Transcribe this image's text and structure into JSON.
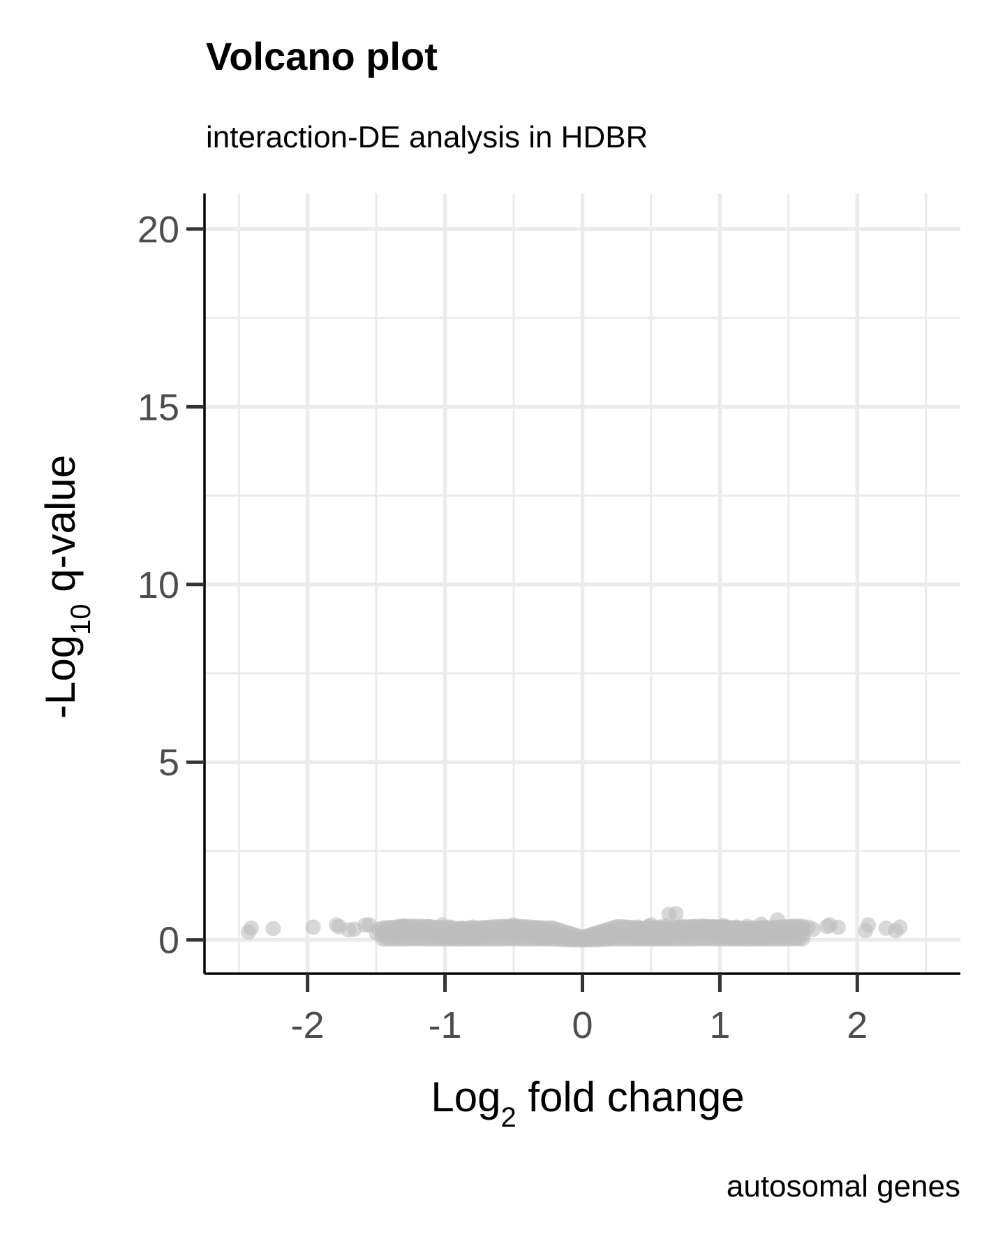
{
  "chart_data": {
    "type": "scatter",
    "title": "Volcano plot",
    "subtitle": "interaction-DE analysis in HDBR",
    "caption": "autosomal genes",
    "xlabel": {
      "main": "Log",
      "sub": "2",
      "rest": " fold change"
    },
    "ylabel": {
      "main": "-Log",
      "sub": "10",
      "rest": " q-value"
    },
    "xlim": [
      -2.75,
      2.75
    ],
    "ylim": [
      -0.95,
      21
    ],
    "x_ticks": [
      -2,
      -1,
      0,
      1,
      2
    ],
    "x_tick_labels": [
      "-2",
      "-1",
      "0",
      "1",
      "2"
    ],
    "y_ticks": [
      0,
      5,
      10,
      15,
      20
    ],
    "y_tick_labels": [
      "0",
      "5",
      "10",
      "15",
      "20"
    ],
    "grid": true,
    "point_color": "#bebebe",
    "point_opacity": 0.6,
    "points": {
      "x": [
        -2.43,
        -2.41,
        -2.25,
        -1.96,
        -1.79,
        -1.77,
        -1.7,
        -1.66,
        -1.58,
        -1.55,
        -1.48,
        -1.42,
        -1.37,
        -1.33,
        -1.3,
        -1.26,
        -1.21,
        -1.16,
        -1.12,
        -1.08,
        -1.04,
        -1.0,
        -0.96,
        -0.92,
        -0.88,
        -0.84,
        -0.8,
        -0.76,
        -0.72,
        -0.68,
        -0.64,
        -0.6,
        -0.56,
        -0.52,
        -0.48,
        -0.44,
        -0.4,
        -0.36,
        -0.32,
        -0.28,
        -0.24,
        -0.2,
        -0.16,
        -0.12,
        -0.08,
        -0.04,
        0.0,
        0.04,
        0.08,
        0.12,
        0.16,
        0.2,
        0.24,
        0.28,
        0.32,
        0.36,
        0.4,
        0.44,
        0.48,
        0.52,
        0.56,
        0.6,
        0.63,
        0.68,
        0.72,
        0.76,
        0.8,
        0.84,
        0.88,
        0.92,
        0.96,
        1.0,
        1.04,
        1.08,
        1.12,
        1.16,
        1.2,
        1.24,
        1.28,
        1.32,
        1.36,
        1.42,
        1.48,
        1.54,
        1.6,
        1.64,
        1.68,
        1.78,
        1.8,
        1.86,
        2.06,
        2.08,
        2.21,
        2.28,
        2.31,
        -1.5,
        -1.2,
        -0.9,
        -0.6,
        -0.3,
        0.3,
        0.6,
        0.9,
        1.2,
        1.5,
        -1.02,
        -0.5,
        0.5,
        1.02,
        1.3
      ],
      "y": [
        0.22,
        0.33,
        0.32,
        0.36,
        0.42,
        0.37,
        0.28,
        0.3,
        0.42,
        0.42,
        0.3,
        0.25,
        0.28,
        0.38,
        0.4,
        0.25,
        0.34,
        0.3,
        0.38,
        0.28,
        0.35,
        0.3,
        0.36,
        0.28,
        0.33,
        0.3,
        0.36,
        0.25,
        0.34,
        0.3,
        0.36,
        0.28,
        0.33,
        0.36,
        0.3,
        0.34,
        0.28,
        0.32,
        0.3,
        0.26,
        0.24,
        0.2,
        0.16,
        0.12,
        0.08,
        0.05,
        0.03,
        0.06,
        0.1,
        0.15,
        0.2,
        0.25,
        0.28,
        0.33,
        0.36,
        0.3,
        0.36,
        0.32,
        0.38,
        0.34,
        0.36,
        0.4,
        0.72,
        0.74,
        0.38,
        0.34,
        0.36,
        0.3,
        0.38,
        0.34,
        0.36,
        0.3,
        0.38,
        0.34,
        0.36,
        0.32,
        0.38,
        0.34,
        0.3,
        0.36,
        0.28,
        0.56,
        0.34,
        0.38,
        0.32,
        0.36,
        0.3,
        0.38,
        0.42,
        0.36,
        0.26,
        0.42,
        0.33,
        0.26,
        0.36,
        0.2,
        0.22,
        0.18,
        0.2,
        0.16,
        0.18,
        0.2,
        0.22,
        0.2,
        0.18,
        0.42,
        0.42,
        0.42,
        0.4,
        0.44
      ]
    }
  }
}
